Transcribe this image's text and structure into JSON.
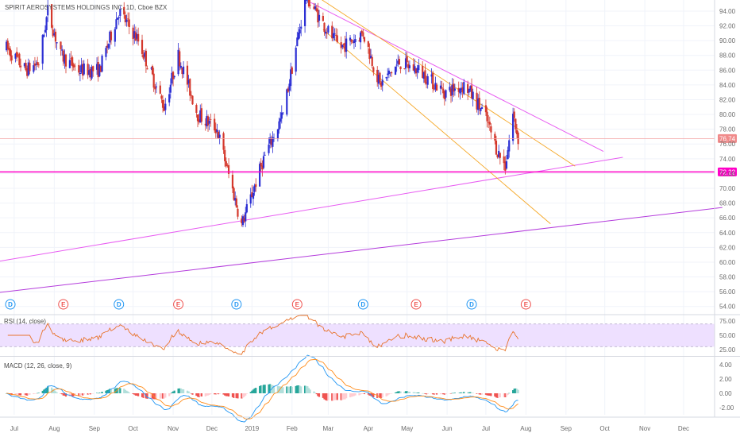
{
  "header": {
    "symbol_title": "SPIRIT AEROSYSTEMS HOLDINGS INC, 1D, Cboe BZX"
  },
  "colors": {
    "up": "#2c2fd4",
    "down": "#d4382c",
    "trend_pink": "#e85cf2",
    "trend_purple": "#b43cdc",
    "channel_orange": "#f5a623",
    "hline": "#ff00c8",
    "rsi_line": "#e8742c",
    "rsi_band": "#eee0ff",
    "macd_line": "#2196f3",
    "signal_line": "#ff8c1a",
    "hist_pos_strong": "#26a69a",
    "hist_pos_weak": "#b2dfdb",
    "hist_neg_strong": "#ef5350",
    "hist_neg_weak": "#ffcdd2",
    "dividend_badge": "#2196f3",
    "earnings_badge": "#ef5350"
  },
  "chart_data": [
    {
      "type": "candlestick",
      "title": "SPIRIT AEROSYSTEMS HOLDINGS INC, 1D, Cboe BZX",
      "ylim": [
        53.0,
        95.5
      ],
      "y_ticks": [
        "54.00",
        "56.00",
        "58.00",
        "60.00",
        "62.00",
        "64.00",
        "66.00",
        "68.00",
        "70.00",
        "72.00",
        "74.00",
        "76.00",
        "78.00",
        "80.00",
        "82.00",
        "84.00",
        "86.00",
        "88.00",
        "90.00",
        "92.00",
        "94.00"
      ],
      "x_ticks": [
        "Jul",
        "Aug",
        "Sep",
        "Oct",
        "Nov",
        "Dec",
        "2019",
        "Feb",
        "Mar",
        "Apr",
        "May",
        "Jun",
        "Jul",
        "Aug",
        "Sep",
        "Oct",
        "Nov",
        "Dec"
      ],
      "approx_close_path": [
        {
          "date": "2018-06-25",
          "close": 89
        },
        {
          "date": "2018-07-10",
          "close": 86
        },
        {
          "date": "2018-07-20",
          "close": 87
        },
        {
          "date": "2018-07-27",
          "close": 94
        },
        {
          "date": "2018-08-06",
          "close": 88
        },
        {
          "date": "2018-08-20",
          "close": 86
        },
        {
          "date": "2018-09-05",
          "close": 86
        },
        {
          "date": "2018-09-20",
          "close": 94
        },
        {
          "date": "2018-10-05",
          "close": 90
        },
        {
          "date": "2018-10-25",
          "close": 81
        },
        {
          "date": "2018-11-05",
          "close": 88
        },
        {
          "date": "2018-11-20",
          "close": 80
        },
        {
          "date": "2018-12-05",
          "close": 78
        },
        {
          "date": "2018-12-24",
          "close": 65
        },
        {
          "date": "2019-01-10",
          "close": 74
        },
        {
          "date": "2019-01-25",
          "close": 80
        },
        {
          "date": "2019-02-05",
          "close": 90
        },
        {
          "date": "2019-02-12",
          "close": 96
        },
        {
          "date": "2019-02-26",
          "close": 92
        },
        {
          "date": "2019-03-10",
          "close": 89
        },
        {
          "date": "2019-03-28",
          "close": 91
        },
        {
          "date": "2019-04-10",
          "close": 84
        },
        {
          "date": "2019-04-25",
          "close": 87
        },
        {
          "date": "2019-05-10",
          "close": 86
        },
        {
          "date": "2019-05-30",
          "close": 83
        },
        {
          "date": "2019-06-15",
          "close": 84
        },
        {
          "date": "2019-06-30",
          "close": 80
        },
        {
          "date": "2019-07-10",
          "close": 75
        },
        {
          "date": "2019-07-16",
          "close": 73
        },
        {
          "date": "2019-07-22",
          "close": 80
        },
        {
          "date": "2019-07-26",
          "close": 76.74
        }
      ],
      "price_labels": [
        {
          "value": 76.74,
          "label": "76.74",
          "color": "#f08a8a"
        },
        {
          "value": 72.22,
          "label": "72.22",
          "color": "#ff00c8"
        }
      ],
      "horizontal_lines": [
        76.74,
        72.22
      ],
      "events": [
        {
          "date": "2018-06-28",
          "kind": "D"
        },
        {
          "date": "2018-08-08",
          "kind": "E"
        },
        {
          "date": "2018-09-20",
          "kind": "D"
        },
        {
          "date": "2018-11-05",
          "kind": "E"
        },
        {
          "date": "2018-12-20",
          "kind": "D"
        },
        {
          "date": "2019-02-05",
          "kind": "E"
        },
        {
          "date": "2019-03-28",
          "kind": "D"
        },
        {
          "date": "2019-05-08",
          "kind": "E"
        },
        {
          "date": "2019-06-20",
          "kind": "D"
        },
        {
          "date": "2019-08-01",
          "kind": "E"
        }
      ]
    },
    {
      "type": "line",
      "title": "RSI (14, close)",
      "ylim": [
        15,
        85
      ],
      "y_ticks": [
        "75.00",
        "50.00",
        "25.00"
      ],
      "band": [
        30,
        70
      ]
    },
    {
      "type": "line",
      "title": "MACD (12, 26, close, 9)",
      "ylim": [
        -3.0,
        5.0
      ],
      "y_ticks": [
        "4.00",
        "2.00",
        "0.00",
        "-2.00"
      ],
      "series": [
        "macd",
        "signal",
        "histogram"
      ]
    }
  ]
}
